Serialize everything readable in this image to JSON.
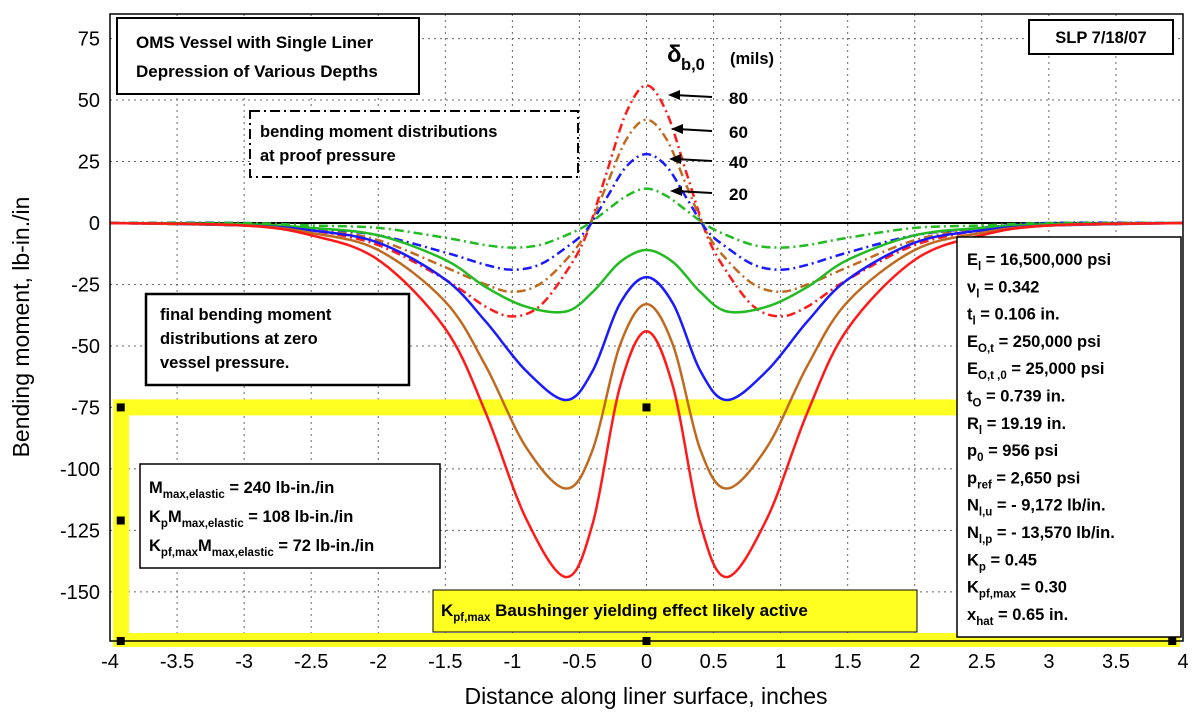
{
  "chart_data": {
    "type": "line",
    "xlabel": "Distance along liner surface, inches",
    "ylabel": "Bending moment, lb-in./in",
    "xlim": [
      -4,
      4
    ],
    "ylim": [
      -170,
      85
    ],
    "grid": true,
    "x_ticks": [
      "-4",
      "-3.5",
      "-3",
      "-2.5",
      "-2",
      "-1.5",
      "-1",
      "-0.5",
      "0",
      "0.5",
      "1",
      "1.5",
      "2",
      "2.5",
      "3",
      "3.5",
      "4"
    ],
    "y_ticks": [
      "75",
      "50",
      "25",
      "0",
      "-25",
      "-50",
      "-75",
      "-100",
      "-125",
      "-150"
    ],
    "x_tick_values": [
      -4,
      -3.5,
      -3,
      -2.5,
      -2,
      -1.5,
      -1,
      -0.5,
      0,
      0.5,
      1,
      1.5,
      2,
      2.5,
      3,
      3.5,
      4
    ],
    "y_tick_values": [
      75,
      50,
      25,
      0,
      -25,
      -50,
      -75,
      -100,
      -125,
      -150
    ],
    "series": [
      {
        "group": "proof",
        "style": "dashdot",
        "color": "#ff1a1a",
        "label": "80",
        "x": [
          -4,
          -3,
          -2.5,
          -2,
          -1.5,
          -1.2,
          -1,
          -0.8,
          -0.6,
          -0.45,
          -0.3,
          -0.15,
          0,
          0.15,
          0.3,
          0.45,
          0.6,
          0.8,
          1,
          1.2,
          1.5,
          2,
          2.5,
          3,
          4
        ],
        "y": [
          0,
          -1,
          -3,
          -9,
          -23,
          -34,
          -38,
          -34,
          -20,
          -5,
          20,
          45,
          56,
          45,
          20,
          -5,
          -20,
          -34,
          -38,
          -34,
          -23,
          -9,
          -3,
          -1,
          0
        ]
      },
      {
        "group": "proof",
        "style": "dashdot",
        "color": "#c06a20",
        "label": "60",
        "x": [
          -4,
          -3,
          -2.5,
          -2,
          -1.5,
          -1.2,
          -1,
          -0.8,
          -0.6,
          -0.45,
          -0.3,
          -0.15,
          0,
          0.15,
          0.3,
          0.45,
          0.6,
          0.8,
          1,
          1.2,
          1.5,
          2,
          2.5,
          3,
          4
        ],
        "y": [
          0,
          -1,
          -2,
          -7,
          -18,
          -25,
          -28,
          -25,
          -15,
          -4,
          15,
          34,
          42,
          34,
          15,
          -4,
          -15,
          -25,
          -28,
          -25,
          -18,
          -7,
          -2,
          -1,
          0
        ]
      },
      {
        "group": "proof",
        "style": "dashdot",
        "color": "#1a1aff",
        "label": "40",
        "x": [
          -4,
          -3,
          -2.5,
          -2,
          -1.5,
          -1.2,
          -1,
          -0.8,
          -0.6,
          -0.45,
          -0.3,
          -0.15,
          0,
          0.15,
          0.3,
          0.45,
          0.6,
          0.8,
          1,
          1.2,
          1.5,
          2,
          2.5,
          3,
          4
        ],
        "y": [
          0,
          0,
          -2,
          -5,
          -12,
          -17,
          -19,
          -17,
          -10,
          -3,
          10,
          23,
          28,
          23,
          10,
          -3,
          -10,
          -17,
          -19,
          -17,
          -12,
          -5,
          -2,
          0,
          0
        ]
      },
      {
        "group": "proof",
        "style": "dashdot",
        "color": "#22bb22",
        "label": "20",
        "x": [
          -4,
          -3,
          -2.5,
          -2,
          -1.5,
          -1.2,
          -1,
          -0.8,
          -0.6,
          -0.45,
          -0.3,
          -0.15,
          0,
          0.15,
          0.3,
          0.45,
          0.6,
          0.8,
          1,
          1.2,
          1.5,
          2,
          2.5,
          3,
          4
        ],
        "y": [
          0,
          0,
          -1,
          -2,
          -6,
          -9,
          -10,
          -9,
          -5,
          -1,
          5,
          11,
          14,
          11,
          5,
          -1,
          -5,
          -9,
          -10,
          -9,
          -6,
          -2,
          -1,
          0,
          0
        ]
      },
      {
        "group": "final",
        "style": "solid",
        "color": "#22bb22",
        "label": "20",
        "x": [
          -4,
          -3,
          -2.5,
          -2,
          -1.5,
          -1.2,
          -0.9,
          -0.6,
          -0.4,
          -0.2,
          0,
          0.2,
          0.4,
          0.6,
          0.9,
          1.2,
          1.5,
          2,
          2.5,
          3,
          4
        ],
        "y": [
          0,
          -0.5,
          -2,
          -5,
          -15,
          -26,
          -34,
          -36,
          -28,
          -16,
          -11,
          -16,
          -28,
          -36,
          -34,
          -26,
          -15,
          -5,
          -2,
          -0.5,
          0
        ]
      },
      {
        "group": "final",
        "style": "solid",
        "color": "#1a1aff",
        "label": "40",
        "x": [
          -4,
          -3,
          -2.5,
          -2,
          -1.5,
          -1.2,
          -0.9,
          -0.6,
          -0.4,
          -0.2,
          0,
          0.2,
          0.4,
          0.6,
          0.9,
          1.2,
          1.5,
          2,
          2.5,
          3,
          4
        ],
        "y": [
          0,
          -1,
          -3,
          -8,
          -23,
          -40,
          -60,
          -72,
          -60,
          -33,
          -22,
          -33,
          -60,
          -72,
          -60,
          -40,
          -23,
          -8,
          -3,
          -1,
          0
        ]
      },
      {
        "group": "final",
        "style": "solid",
        "color": "#c06a20",
        "label": "60",
        "x": [
          -4,
          -3,
          -2.5,
          -2,
          -1.5,
          -1.2,
          -0.9,
          -0.6,
          -0.4,
          -0.2,
          0,
          0.2,
          0.4,
          0.6,
          0.9,
          1.2,
          1.5,
          2,
          2.5,
          3,
          4
        ],
        "y": [
          0,
          -1,
          -4,
          -11,
          -32,
          -58,
          -91,
          -108,
          -92,
          -50,
          -33,
          -50,
          -92,
          -108,
          -91,
          -58,
          -32,
          -11,
          -4,
          -1,
          0
        ]
      },
      {
        "group": "final",
        "style": "solid",
        "color": "#ff1a1a",
        "label": "80",
        "x": [
          -4,
          -3,
          -2.5,
          -2,
          -1.5,
          -1.2,
          -0.9,
          -0.6,
          -0.4,
          -0.2,
          0,
          0.2,
          0.4,
          0.6,
          0.9,
          1.2,
          1.5,
          2,
          2.5,
          3,
          4
        ],
        "y": [
          0,
          -1,
          -5,
          -15,
          -43,
          -77,
          -120,
          -144,
          -122,
          -67,
          -44,
          -67,
          -122,
          -144,
          -120,
          -77,
          -43,
          -15,
          -5,
          -1,
          0
        ]
      }
    ]
  },
  "annotations": {
    "title_line1": "OMS Vessel with Single Liner",
    "title_line2": "Depression of Various Depths",
    "stamp": "SLP  7/18/07",
    "delta_symbol": "δ",
    "delta_sub": "b,0",
    "delta_units": "(mils)",
    "depth_labels": [
      "80",
      "60",
      "40",
      "20"
    ],
    "proof_box_line1": "bending moment distributions",
    "proof_box_line2": "at proof pressure",
    "final_box_line1": "final bending moment",
    "final_box_line2": "distributions at zero",
    "final_box_line3": "vessel pressure.",
    "moments": [
      {
        "main": "M",
        "sub": "max,elastic",
        "rest": " = 240 lb-in./in"
      },
      {
        "main": "K",
        "sub": "p",
        "main2": "M",
        "sub2": "max,elastic",
        "rest": " = 108 lb-in./in"
      },
      {
        "main": "K",
        "sub": "pf,max",
        "main2": "M",
        "sub2": "max,elastic",
        "rest": " = 72 lb-in./in"
      }
    ],
    "yellow_label_main": "K",
    "yellow_label_sub": "pf,max",
    "yellow_label_rest": " Baushinger yielding effect likely active",
    "params": [
      {
        "main": "E",
        "sub": "l",
        "rest": " = 16,500,000 psi"
      },
      {
        "main": "ν",
        "sub": "l",
        "rest": " = 0.342"
      },
      {
        "main": "t",
        "sub": "l",
        "rest": " = 0.106 in."
      },
      {
        "main": "E",
        "sub": "O,t",
        "rest": " = 250,000 psi"
      },
      {
        "main": "E",
        "sub": "O,t ,0",
        "rest": " = 25,000 psi"
      },
      {
        "main": "t",
        "sub": "O",
        "rest": " = 0.739 in."
      },
      {
        "main": "R",
        "sub": "l",
        "rest": " = 19.19 in."
      },
      {
        "main": "p",
        "sub": "0",
        "rest": " = 956 psi"
      },
      {
        "main": "p",
        "sub": "ref",
        "rest": " = 2,650 psi"
      },
      {
        "main": "N",
        "sub": "l,u",
        "rest": " = - 9,172 lb/in."
      },
      {
        "main": "N",
        "sub": "l,p",
        "rest": " = - 13,570 lb/in."
      },
      {
        "main": "K",
        "sub": "p",
        "rest": " = 0.45"
      },
      {
        "main": "K",
        "sub": "pf,max",
        "rest": " = 0.30"
      },
      {
        "main": "x",
        "sub": "hat",
        "rest": " = 0.65 in."
      }
    ],
    "yellow_color": "#ffff22"
  }
}
